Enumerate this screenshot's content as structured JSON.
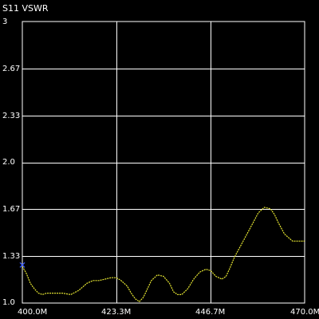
{
  "chart_data": {
    "type": "line",
    "title": "S11 VSWR",
    "x_ticks": [
      "400.0M",
      "423.3M",
      "446.7M",
      "470.0M"
    ],
    "y_ticks": [
      "1.0",
      "1.33",
      "1.67",
      "2.0",
      "2.33",
      "2.67",
      "3"
    ],
    "xlim": [
      400.0,
      470.0
    ],
    "ylim": [
      1.0,
      3.0
    ],
    "grid": true,
    "series": [
      {
        "color": "#e6e632",
        "x": [
          400.0,
          401.0,
          402.0,
          403.0,
          404.0,
          405.0,
          406.0,
          408.0,
          410.0,
          412.0,
          414.0,
          416.0,
          417.5,
          419.0,
          420.5,
          422.0,
          423.3,
          424.5,
          426.0,
          427.0,
          428.0,
          429.0,
          430.0,
          431.0,
          432.0,
          433.5,
          435.0,
          436.5,
          437.5,
          438.5,
          439.5,
          441.0,
          442.5,
          444.0,
          445.5,
          446.7,
          448.0,
          449.5,
          450.5,
          451.5,
          452.5,
          454.0,
          455.5,
          457.0,
          458.5,
          460.0,
          461.5,
          462.5,
          463.5,
          465.0,
          467.0,
          468.5,
          470.0
        ],
        "y": [
          1.26,
          1.21,
          1.14,
          1.1,
          1.07,
          1.06,
          1.07,
          1.07,
          1.07,
          1.06,
          1.09,
          1.14,
          1.16,
          1.16,
          1.17,
          1.18,
          1.18,
          1.16,
          1.12,
          1.07,
          1.03,
          1.01,
          1.04,
          1.1,
          1.16,
          1.2,
          1.19,
          1.14,
          1.08,
          1.06,
          1.06,
          1.1,
          1.17,
          1.22,
          1.24,
          1.23,
          1.19,
          1.17,
          1.19,
          1.25,
          1.32,
          1.4,
          1.48,
          1.56,
          1.64,
          1.68,
          1.67,
          1.63,
          1.57,
          1.49,
          1.44,
          1.44,
          1.44
        ]
      }
    ],
    "marker": {
      "label": "",
      "x": 400.0,
      "y": 1.27,
      "color": "#3a5cff"
    }
  }
}
